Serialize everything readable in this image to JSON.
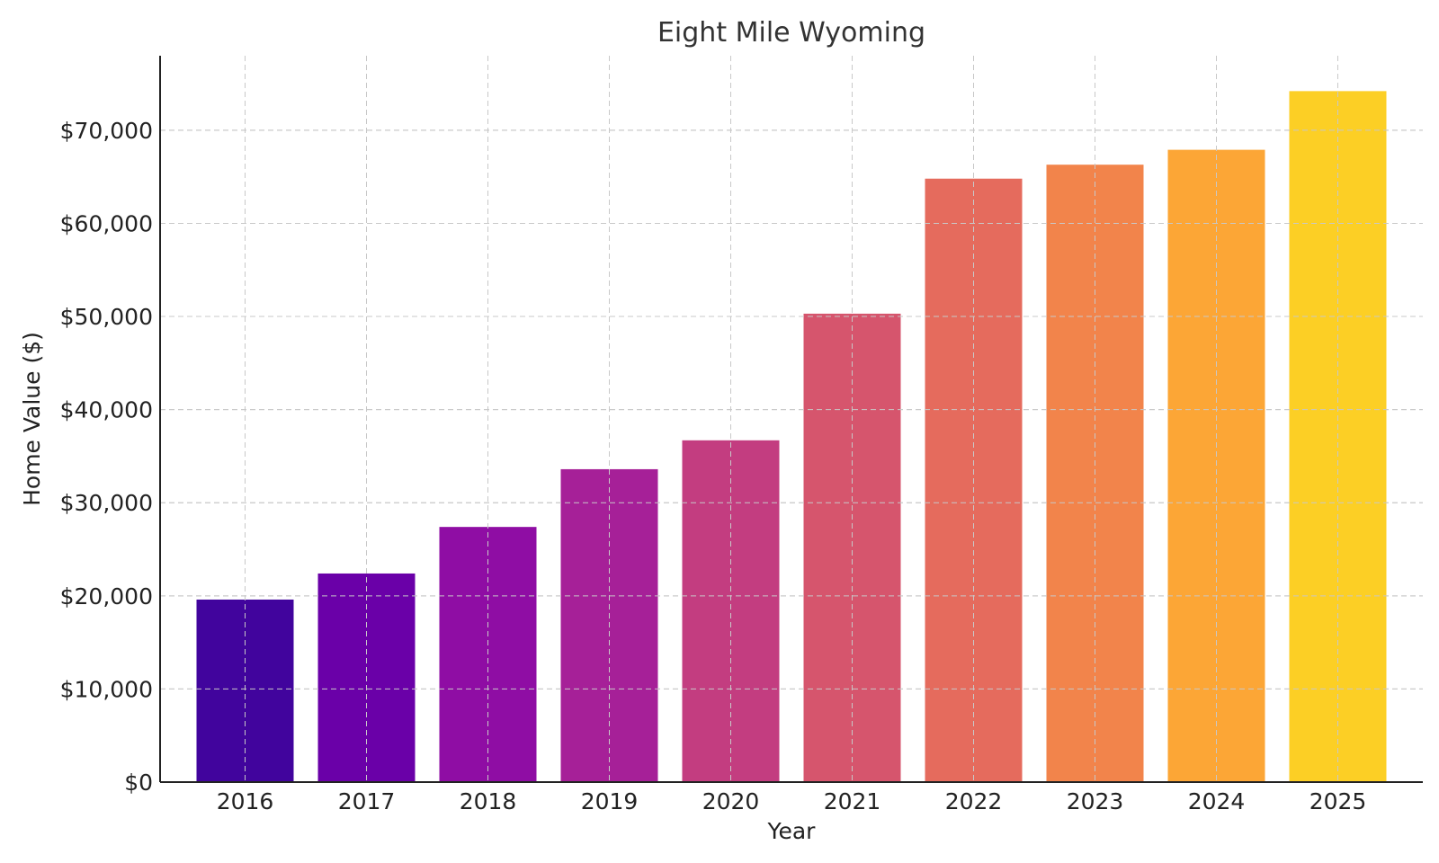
{
  "chart_data": {
    "type": "bar",
    "title": "Eight Mile Wyoming",
    "xlabel": "Year",
    "ylabel": "Home Value ($)",
    "categories": [
      "2016",
      "2017",
      "2018",
      "2019",
      "2020",
      "2021",
      "2022",
      "2023",
      "2024",
      "2025"
    ],
    "values": [
      19600,
      22400,
      27400,
      33600,
      36700,
      50300,
      64800,
      66300,
      67900,
      74200
    ],
    "colors": [
      "#41049d",
      "#6a00a8",
      "#8f0da4",
      "#a62098",
      "#c33d80",
      "#d6556d",
      "#e56b5d",
      "#f2844b",
      "#fca636",
      "#fccf25"
    ],
    "ylim": [
      0,
      78000
    ],
    "yticks": [
      0,
      10000,
      20000,
      30000,
      40000,
      50000,
      60000,
      70000
    ],
    "ytick_labels": [
      "$0",
      "$10,000",
      "$20,000",
      "$30,000",
      "$40,000",
      "$50,000",
      "$60,000",
      "$70,000"
    ],
    "grid": true
  }
}
